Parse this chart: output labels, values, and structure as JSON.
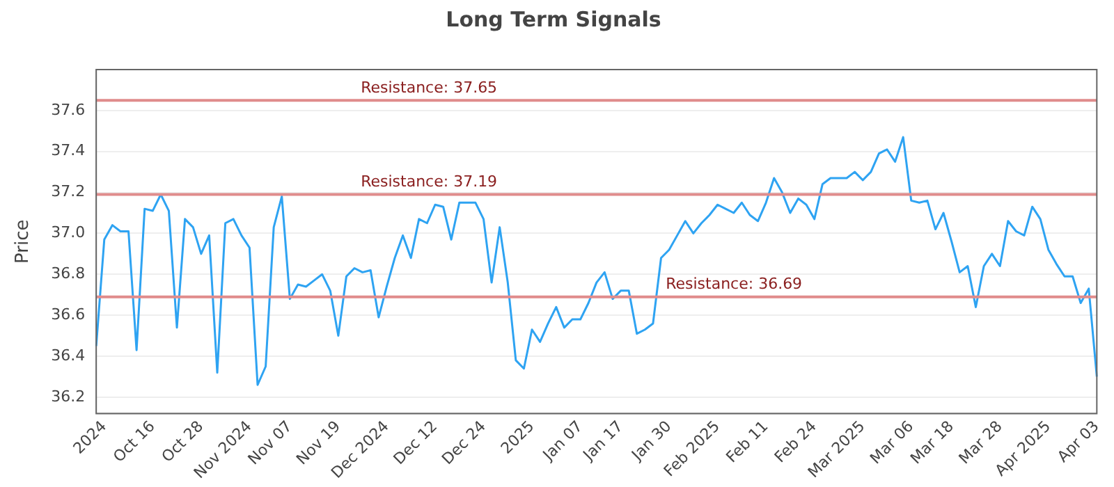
{
  "chart_data": {
    "type": "line",
    "title": "Long Term Signals",
    "ylabel": "Price",
    "categories": [
      null,
      "2024",
      null,
      null,
      null,
      null,
      null,
      "Oct 16",
      null,
      null,
      null,
      null,
      null,
      "Oct 28",
      null,
      null,
      null,
      null,
      null,
      "Nov 2024",
      null,
      null,
      null,
      null,
      "Nov 07",
      null,
      null,
      null,
      null,
      null,
      "Nov 19",
      null,
      null,
      null,
      null,
      null,
      "Dec 2024",
      null,
      null,
      null,
      null,
      null,
      "Dec 12",
      null,
      null,
      null,
      null,
      null,
      "Dec 24",
      null,
      null,
      null,
      null,
      null,
      "2025",
      null,
      null,
      null,
      null,
      null,
      "Jan 07",
      null,
      null,
      null,
      null,
      "Jan 17",
      null,
      null,
      null,
      null,
      null,
      "Jan 30",
      null,
      null,
      null,
      null,
      null,
      "Feb 2025",
      null,
      null,
      null,
      null,
      null,
      "Feb 11",
      null,
      null,
      null,
      null,
      null,
      "Feb 24",
      null,
      null,
      null,
      null,
      null,
      "Mar 2025",
      null,
      null,
      null,
      null,
      null,
      "Mar 06",
      null,
      null,
      null,
      null,
      "Mar 18",
      null,
      null,
      null,
      null,
      null,
      "Mar 28",
      null,
      null,
      null,
      null,
      null,
      "Apr 2025",
      null,
      null,
      null,
      null,
      null,
      "Apr 03"
    ],
    "series": [
      {
        "color": "#2ea3f2",
        "values": [
          36.45,
          36.97,
          37.04,
          37.01,
          37.01,
          36.43,
          37.12,
          37.11,
          37.19,
          37.11,
          36.54,
          37.07,
          37.03,
          36.9,
          36.99,
          36.32,
          37.05,
          37.07,
          36.99,
          36.93,
          36.26,
          36.35,
          37.03,
          37.18,
          36.68,
          36.75,
          36.74,
          36.77,
          36.8,
          36.72,
          36.5,
          36.79,
          36.83,
          36.81,
          36.82,
          36.59,
          36.74,
          36.88,
          36.99,
          36.88,
          37.07,
          37.05,
          37.14,
          37.13,
          36.97,
          37.15,
          37.15,
          37.15,
          37.07,
          36.76,
          37.03,
          36.76,
          36.38,
          36.34,
          36.53,
          36.47,
          36.56,
          36.64,
          36.54,
          36.58,
          36.58,
          36.66,
          36.76,
          36.81,
          36.68,
          36.72,
          36.72,
          36.51,
          36.53,
          36.56,
          36.88,
          36.92,
          36.99,
          37.06,
          37.0,
          37.05,
          37.09,
          37.14,
          37.12,
          37.1,
          37.15,
          37.09,
          37.06,
          37.15,
          37.27,
          37.2,
          37.1,
          37.17,
          37.14,
          37.07,
          37.24,
          37.27,
          37.27,
          37.27,
          37.3,
          37.26,
          37.3,
          37.39,
          37.41,
          37.35,
          37.47,
          37.16,
          37.15,
          37.16,
          37.02,
          37.1,
          36.96,
          36.81,
          36.84,
          36.64,
          36.84,
          36.9,
          36.84,
          37.06,
          37.01,
          36.99,
          37.13,
          37.07,
          36.92,
          36.85,
          36.79,
          36.79,
          36.66,
          36.73,
          36.3
        ]
      }
    ],
    "ylim": [
      36.12,
      37.8
    ],
    "yticks": [
      36.2,
      36.4,
      36.6,
      36.8,
      {
        "value": 37,
        "label": "37.0"
      },
      37.2,
      37.4,
      37.6
    ],
    "grid": "y",
    "legend": false,
    "marker": "none",
    "line_style": "solid",
    "ref_lines": [
      {
        "axis": "y",
        "value": 37.65,
        "label": "Resistance: 37.65",
        "color": "#e08c8c"
      },
      {
        "axis": "y",
        "value": 37.19,
        "label": "Resistance: 37.19",
        "color": "#e08c8c"
      },
      {
        "axis": "y",
        "value": 36.69,
        "label": "Resistance: 36.69",
        "color": "#e08c8c"
      }
    ]
  }
}
